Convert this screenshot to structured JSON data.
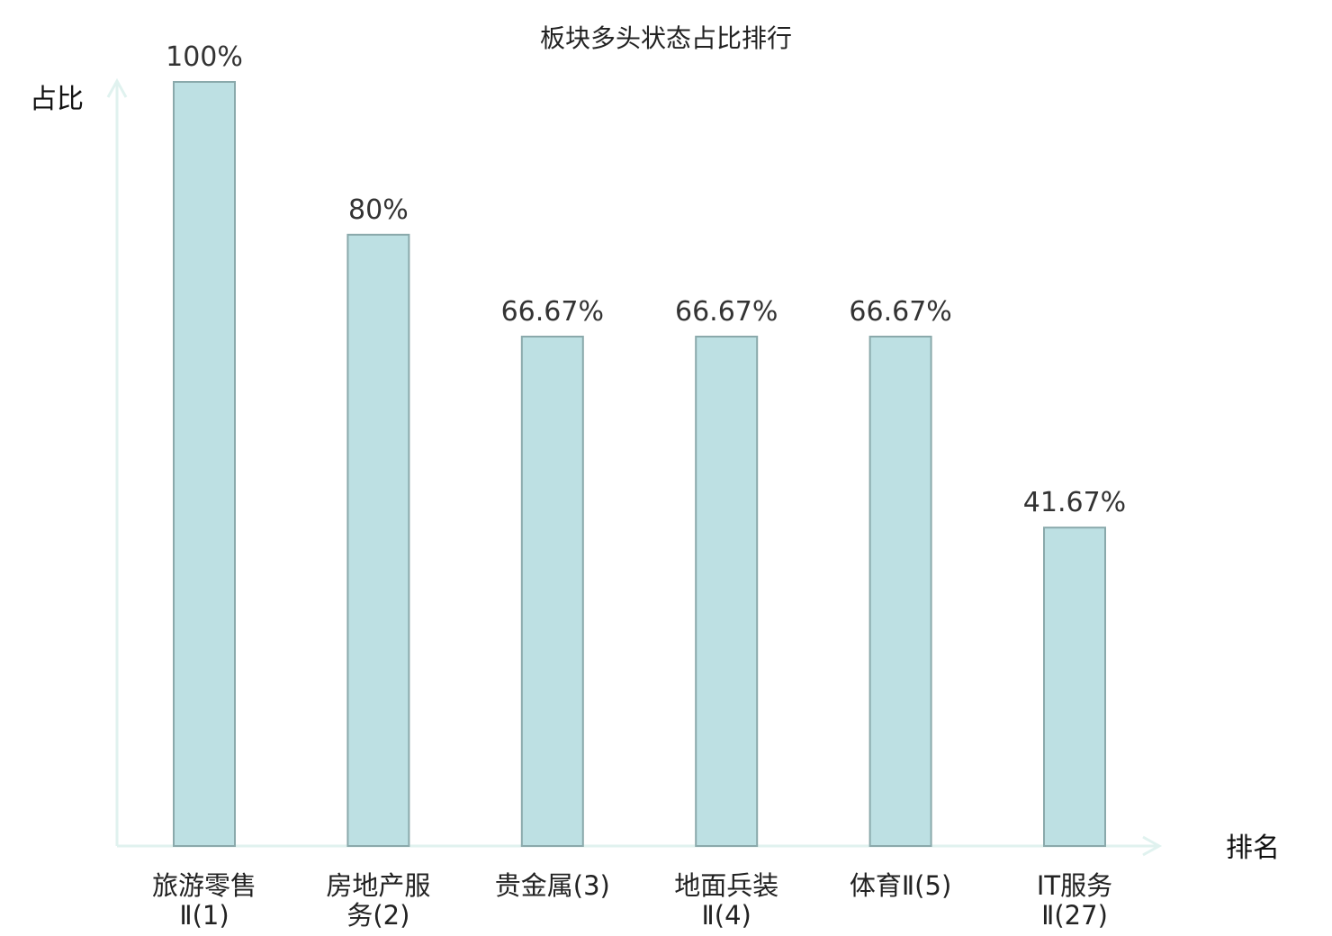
{
  "chart_data": {
    "type": "bar",
    "title": "板块多头状态占比排行",
    "ylabel": "占比",
    "xlabel": "排名",
    "ylim": [
      0,
      100
    ],
    "grid": false,
    "categories": [
      [
        "旅游零售",
        "Ⅱ(1)"
      ],
      [
        "房地产服",
        "务(2)"
      ],
      [
        "贵金属(3)"
      ],
      [
        "地面兵装",
        "Ⅱ(4)"
      ],
      [
        "体育Ⅱ(5)"
      ],
      [
        "IT服务",
        "Ⅱ(27)"
      ]
    ],
    "values": [
      100,
      80,
      66.67,
      66.67,
      66.67,
      41.67
    ],
    "value_labels": [
      "100%",
      "80%",
      "66.67%",
      "66.67%",
      "66.67%",
      "41.67%"
    ],
    "highlight_index": 5,
    "colors": {
      "bar_fill": "#bde0e3",
      "bar_stroke": "#8aa9ab",
      "axis": "#e0f2ef",
      "label": "#333333",
      "highlight": "#e02020"
    }
  }
}
